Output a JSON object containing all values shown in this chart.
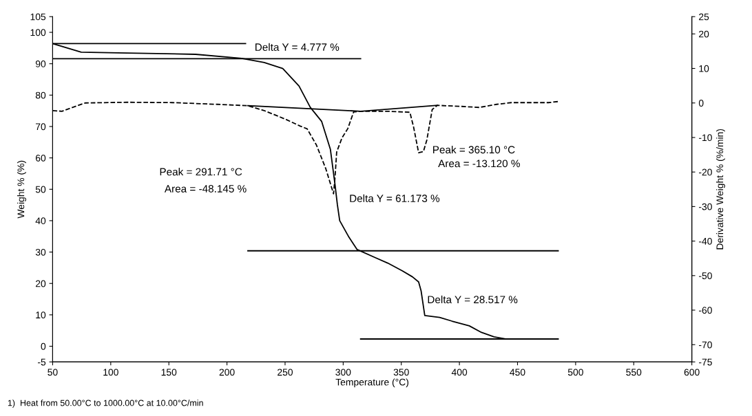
{
  "chart_data": {
    "type": "line",
    "xlabel": "Temperature (°C)",
    "ylabel": "Weight % (%)",
    "y2label": "Derivative Weight % (%/min)",
    "xlim": [
      50,
      600
    ],
    "xticks": [
      50,
      100,
      150,
      200,
      250,
      300,
      350,
      400,
      450,
      500,
      550,
      600
    ],
    "ylim": [
      -5,
      105
    ],
    "yticks": [
      -5,
      0,
      10,
      20,
      30,
      40,
      50,
      60,
      70,
      80,
      90,
      100,
      105
    ],
    "y2lim": [
      -75,
      25
    ],
    "y2ticks": [
      -75,
      -70,
      -60,
      -50,
      -40,
      -30,
      -20,
      -10,
      0,
      10,
      20,
      25
    ],
    "grid": false,
    "legend": false,
    "series": [
      {
        "color": "#000000",
        "line_style": "solid",
        "x": [
          50,
          74.6,
          114,
          173,
          212.6,
          232,
          248,
          262,
          271.7,
          281.5,
          289,
          293,
          295,
          297,
          305,
          312,
          327.7,
          338.3,
          351,
          359.6,
          364.9,
          367,
          370.2,
          383,
          393.6,
          408.5,
          419,
          429.8,
          440.4,
          484.7
        ],
        "values": [
          96.4,
          93.7,
          93.4,
          93.0,
          91.7,
          90.4,
          88.5,
          82.9,
          76.1,
          71.6,
          62.7,
          51.4,
          45.1,
          40,
          34.7,
          30.8,
          28.2,
          26.5,
          24.0,
          22.1,
          20.5,
          17.7,
          9.8,
          9.2,
          8.0,
          6.5,
          4.4,
          3.0,
          2.3,
          2.3
        ]
      },
      {
        "color": "#000000",
        "line_style": "dashed",
        "axis": "y2",
        "x": [
          50,
          58,
          78,
          114,
          153,
          192,
          218,
          232,
          251,
          263,
          269,
          277,
          285,
          291.7,
          293,
          294.4,
          299,
          304,
          309,
          315,
          338,
          357.4,
          360.6,
          364.9,
          369,
          372,
          376.6,
          380.9,
          402,
          417,
          432,
          444.7,
          476.6,
          484.7
        ],
        "values": [
          -2.2,
          -2.4,
          0,
          0.2,
          0.1,
          -0.4,
          -0.8,
          -2.2,
          -4.8,
          -6.7,
          -7.5,
          -12.2,
          -19,
          -26.3,
          -21.4,
          -14.2,
          -10.1,
          -7.4,
          -2.6,
          -2.4,
          -2.4,
          -2.7,
          -7,
          -14.4,
          -14.1,
          -10.7,
          -1.9,
          -0.7,
          -1.0,
          -1.3,
          -0.4,
          0.1,
          0.1,
          0.4
        ]
      },
      {
        "color": "#000000",
        "line_style": "solid",
        "axis": "y2",
        "x": [
          218,
          315,
          381
        ],
        "values": [
          -0.8,
          -2.4,
          -0.7
        ]
      },
      {
        "color": "#000000",
        "line_style": "solid",
        "x": [
          50,
          216
        ],
        "values": [
          96.4,
          96.4
        ]
      },
      {
        "color": "#000000",
        "line_style": "solid",
        "x": [
          50,
          315
        ],
        "values": [
          91.6,
          91.6
        ]
      },
      {
        "color": "#000000",
        "line_style": "solid",
        "x": [
          218,
          485
        ],
        "values": [
          30.4,
          30.4
        ]
      },
      {
        "color": "#000000",
        "line_style": "solid",
        "x": [
          315,
          485
        ],
        "values": [
          2.3,
          2.3
        ]
      }
    ],
    "annotations": [
      "Delta Y = 4.777 %",
      "Peak = 291.71 °C",
      "Area = -48.145 %",
      "Delta Y = 61.173 %",
      "Peak = 365.10 °C",
      "Area = -13.120 %",
      "Delta Y = 28.517 %",
      "1)  Heat from 50.00°C to 1000.00°C at 10.00°C/min"
    ]
  }
}
